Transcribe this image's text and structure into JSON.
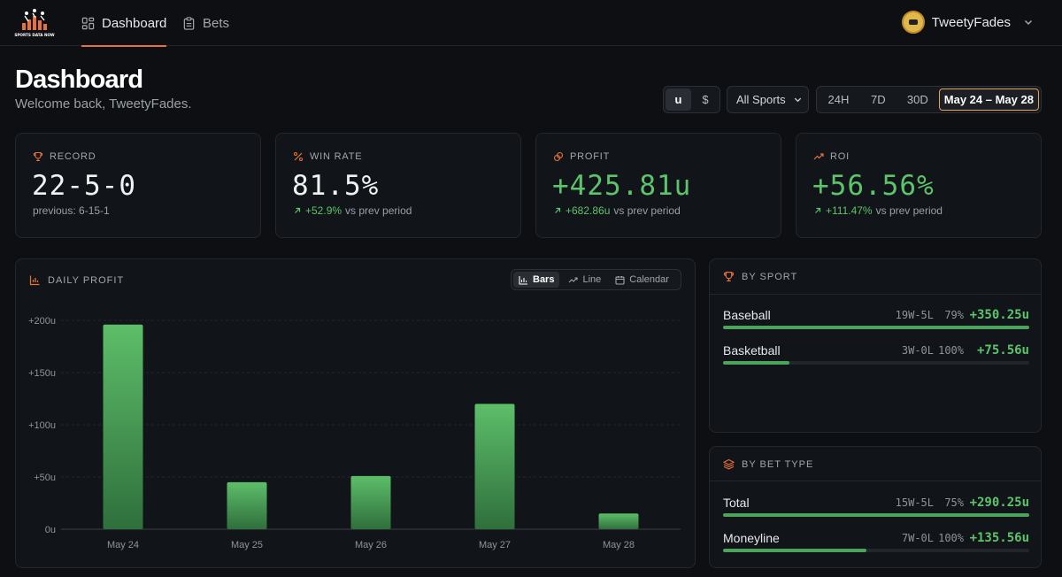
{
  "nav": {
    "logo_text": "SPORTS DATA NOW",
    "tabs": [
      {
        "label": "Dashboard",
        "icon": "dashboard-grid-icon",
        "active": true
      },
      {
        "label": "Bets",
        "icon": "clipboard-icon",
        "active": false
      }
    ],
    "user": {
      "name": "TweetyFades"
    }
  },
  "header": {
    "title": "Dashboard",
    "subtitle": "Welcome back, TweetyFades."
  },
  "controls": {
    "unit_options": [
      "u",
      "$"
    ],
    "unit_selected": "u",
    "sport_select": "All Sports",
    "ranges": [
      "24H",
      "7D",
      "30D",
      "May 24 – May 28"
    ],
    "range_selected": "May 24 – May 28"
  },
  "stats": [
    {
      "label": "RECORD",
      "icon": "trophy-icon",
      "value": "22-5-0",
      "sub": "previous: 6-15-1"
    },
    {
      "label": "WIN RATE",
      "icon": "percent-icon",
      "value": "81.5%",
      "delta": "+52.9%",
      "sub": "vs prev period"
    },
    {
      "label": "PROFIT",
      "icon": "coins-icon",
      "value": "+425.81u",
      "delta": "+682.86u",
      "sub": "vs prev period"
    },
    {
      "label": "ROI",
      "icon": "trending-up-icon",
      "value": "+56.56%",
      "delta": "+111.47%",
      "sub": "vs prev period"
    }
  ],
  "daily_profit": {
    "label": "DAILY PROFIT",
    "views": [
      "Bars",
      "Line",
      "Calendar"
    ],
    "view_selected": "Bars"
  },
  "chart_data": {
    "type": "bar",
    "categories": [
      "May 24",
      "May 25",
      "May 26",
      "May 27",
      "May 28"
    ],
    "values": [
      196,
      45,
      51,
      120,
      15
    ],
    "ylim": [
      0,
      200
    ],
    "yticks": [
      0,
      50,
      100,
      150,
      200
    ],
    "ytick_labels": [
      "0u",
      "+50u",
      "+100u",
      "+150u",
      "+200u"
    ],
    "grid": true,
    "colors": {
      "bar_top": "#5dbe69",
      "bar_bottom": "#2f6f3c"
    }
  },
  "by_sport": {
    "label": "BY SPORT",
    "rows": [
      {
        "name": "Baseball",
        "record": "19W-5L",
        "pct": "79%",
        "profit": "+350.25u",
        "fill": 1.0
      },
      {
        "name": "Basketball",
        "record": "3W-0L",
        "pct": "100%",
        "profit": "+75.56u",
        "fill": 0.216
      }
    ]
  },
  "by_bet_type": {
    "label": "BY BET TYPE",
    "rows": [
      {
        "name": "Total",
        "record": "15W-5L",
        "pct": "75%",
        "profit": "+290.25u",
        "fill": 1.0
      },
      {
        "name": "Moneyline",
        "record": "7W-0L",
        "pct": "100%",
        "profit": "+135.56u",
        "fill": 0.467
      }
    ]
  },
  "colors": {
    "accent": "#e8713a",
    "positive": "#5cc46a",
    "background": "#0d0f12"
  }
}
